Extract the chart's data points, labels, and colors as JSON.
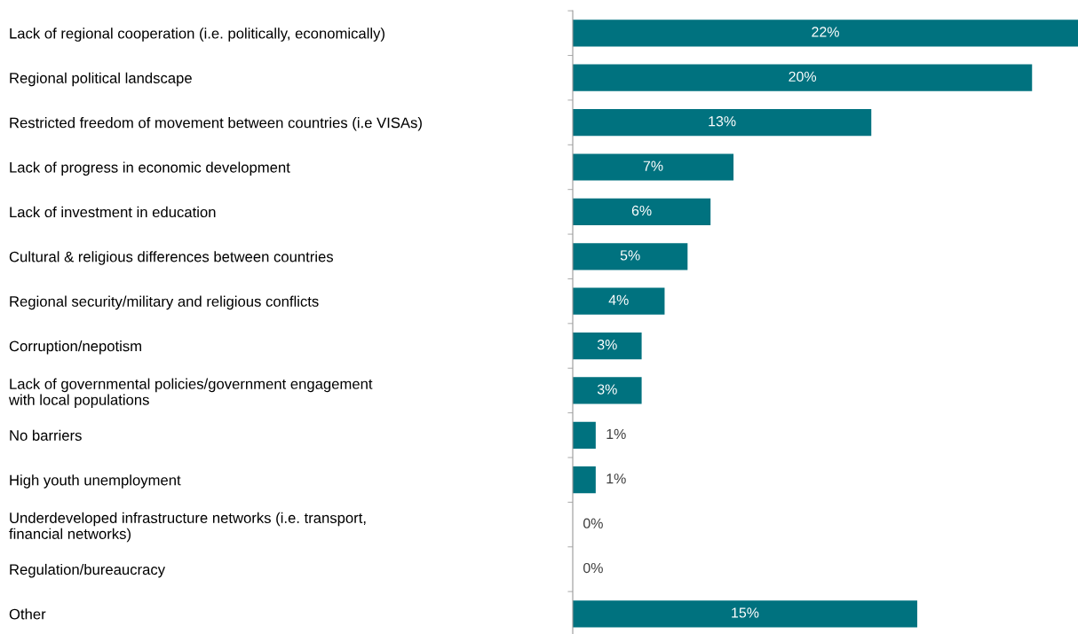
{
  "chart_data": {
    "type": "bar",
    "orientation": "horizontal",
    "categories": [
      "Lack of regional cooperation (i.e. politically, economically)",
      "Regional political landscape",
      "Restricted freedom of movement between countries (i.e VISAs)",
      "Lack of progress in economic development",
      "Lack of investment in education",
      "Cultural & religious differences between countries",
      "Regional security/military and religious conflicts",
      "Corruption/nepotism",
      "Lack of governmental policies/government engagement\nwith local populations",
      "No barriers",
      "High youth unemployment",
      "Underdeveloped infrastructure networks (i.e. transport,\nfinancial networks)",
      "Regulation/bureaucracy",
      "Other"
    ],
    "values": [
      22,
      20,
      13,
      7,
      6,
      5,
      4,
      3,
      3,
      1,
      1,
      0,
      0,
      15
    ],
    "value_labels": [
      "22%",
      "20%",
      "13%",
      "7%",
      "6%",
      "5%",
      "4%",
      "3%",
      "3%",
      "1%",
      "1%",
      "0%",
      "0%",
      "15%"
    ],
    "color": "#00727f",
    "tick_labels": "y",
    "grid": false,
    "legend": false
  }
}
